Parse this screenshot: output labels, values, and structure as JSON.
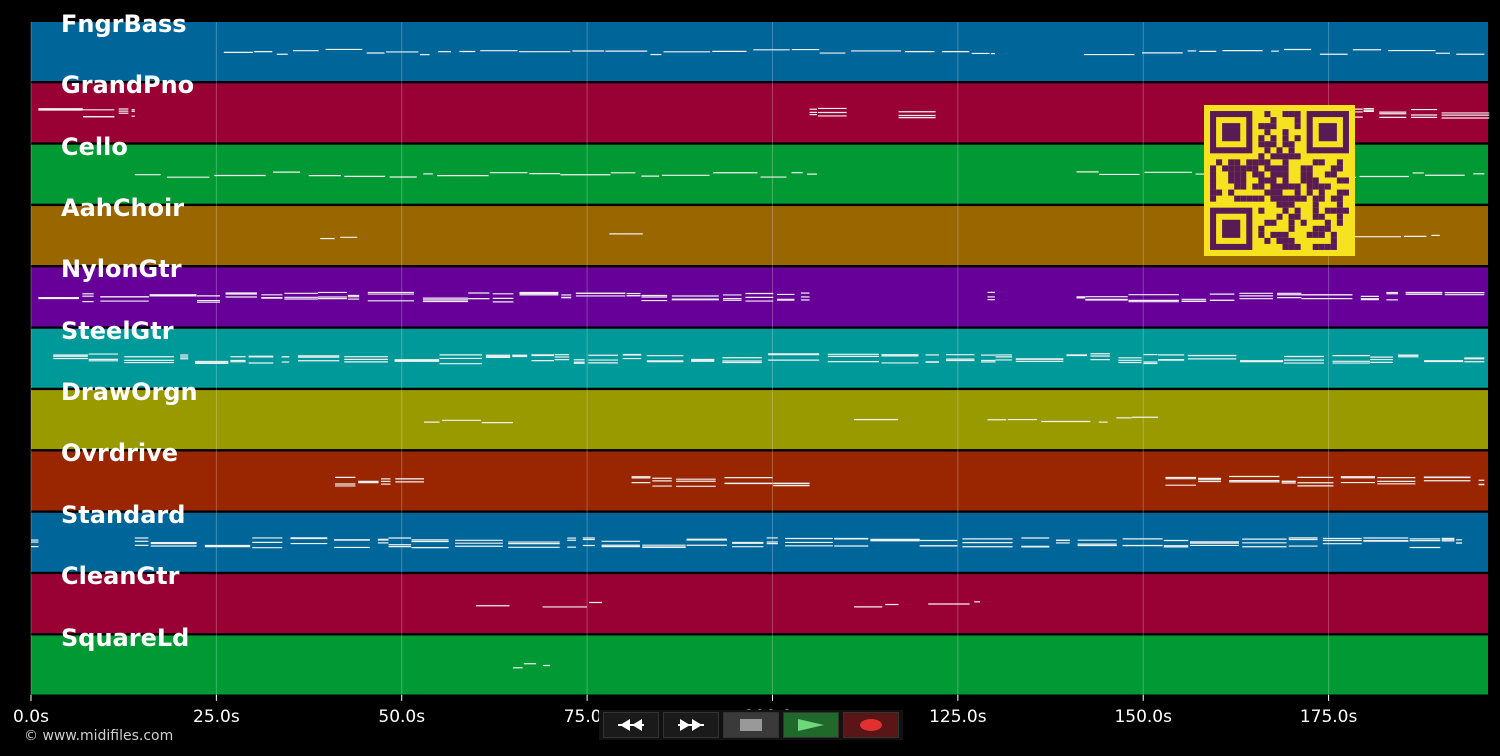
{
  "tracks": [
    {
      "name": "FngrBass",
      "color": "#006699"
    },
    {
      "name": "GrandPno",
      "color": "#990033"
    },
    {
      "name": "Cello",
      "color": "#009933"
    },
    {
      "name": "AahChoir",
      "color": "#996600"
    },
    {
      "name": "NylonGtr",
      "color": "#660099"
    },
    {
      "name": "SteelGtr",
      "color": "#009999"
    },
    {
      "name": "DrawOrgn",
      "color": "#999900"
    },
    {
      "name": "Ovrdrive",
      "color": "#992600"
    },
    {
      "name": "Standard",
      "color": "#006699"
    },
    {
      "name": "CleanGtr",
      "color": "#990033"
    },
    {
      "name": "SquareLd",
      "color": "#009933"
    }
  ],
  "timeline": {
    "ticks": [
      "0.0s",
      "25.0s",
      "50.0s",
      "75.0s",
      "100.0s",
      "125.0s",
      "150.0s",
      "175.0s"
    ],
    "tick_seconds": [
      0,
      25,
      50,
      75,
      100,
      125,
      150,
      175
    ],
    "max_seconds": 196.5
  },
  "copyright": "© www.midifiles.com",
  "transport": {
    "rewind_icon": "rewind-icon",
    "forward_icon": "fast-forward-icon",
    "stop_icon": "stop-icon",
    "play_icon": "play-icon",
    "record_icon": "record-icon"
  },
  "qr": {
    "icon": "qr-code-icon",
    "fg": "#5a1a55",
    "bg": "#f7e21f"
  }
}
